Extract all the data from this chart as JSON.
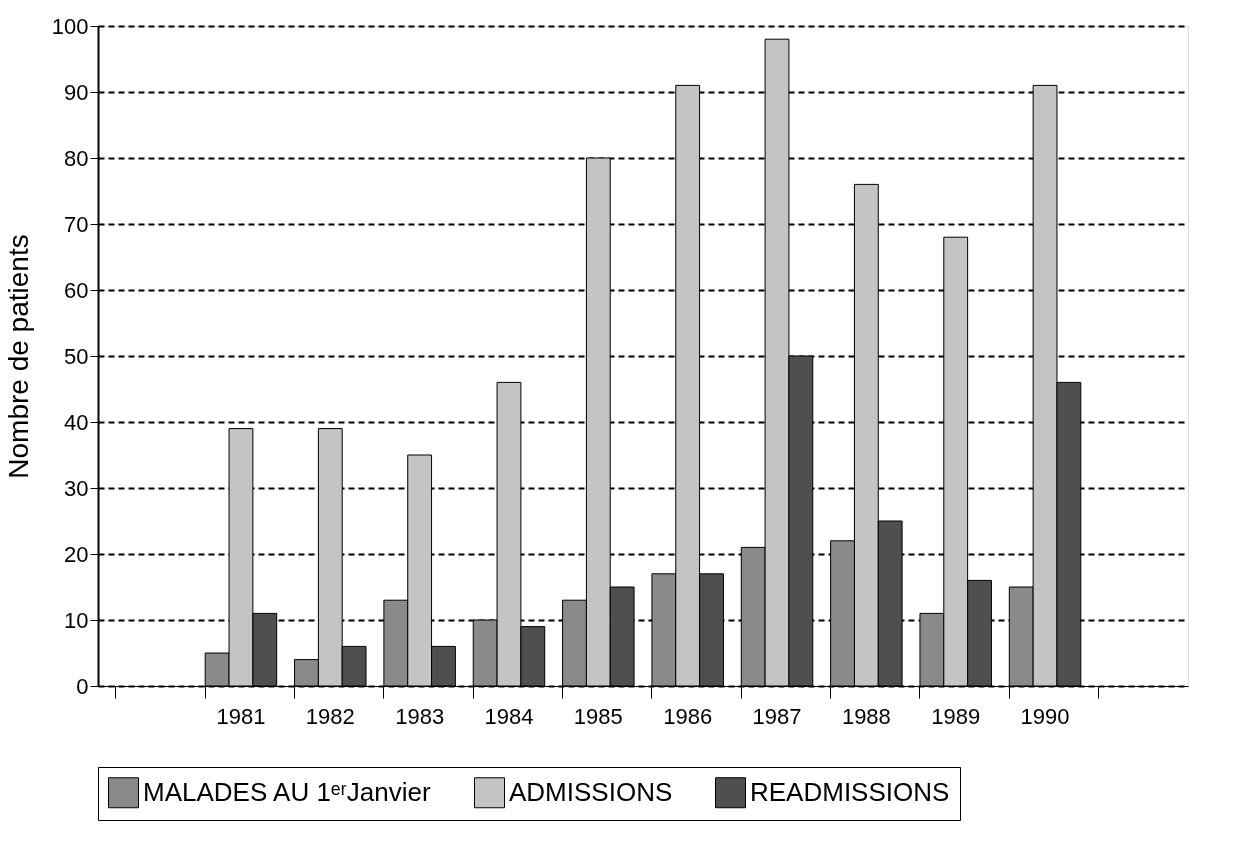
{
  "chart_data": {
    "type": "bar",
    "ylabel": "Nombre de patients",
    "categories": [
      null,
      "1981",
      "1982",
      "1983",
      "1984",
      "1985",
      "1986",
      "1987",
      "1988",
      "1989",
      "1990",
      null
    ],
    "series": [
      {
        "name": "MALADES AU 1ᵉʳJanvier",
        "color": "#8a8a8a",
        "values": [
          null,
          5,
          4,
          13,
          10,
          13,
          17,
          21,
          22,
          11,
          15,
          null
        ]
      },
      {
        "name": "ADMISSIONS",
        "color": "#c4c4c4",
        "values": [
          null,
          39,
          39,
          35,
          46,
          80,
          91,
          98,
          76,
          68,
          91,
          null
        ]
      },
      {
        "name": "READMISSIONS",
        "color": "#4f4f4f",
        "values": [
          null,
          11,
          6,
          6,
          9,
          15,
          17,
          50,
          25,
          16,
          46,
          null
        ]
      }
    ],
    "ylim": [
      0,
      100
    ],
    "yticks": [
      0,
      10,
      20,
      30,
      40,
      50,
      60,
      70,
      80,
      90,
      100
    ],
    "grid": "y",
    "legend": "bottom"
  }
}
